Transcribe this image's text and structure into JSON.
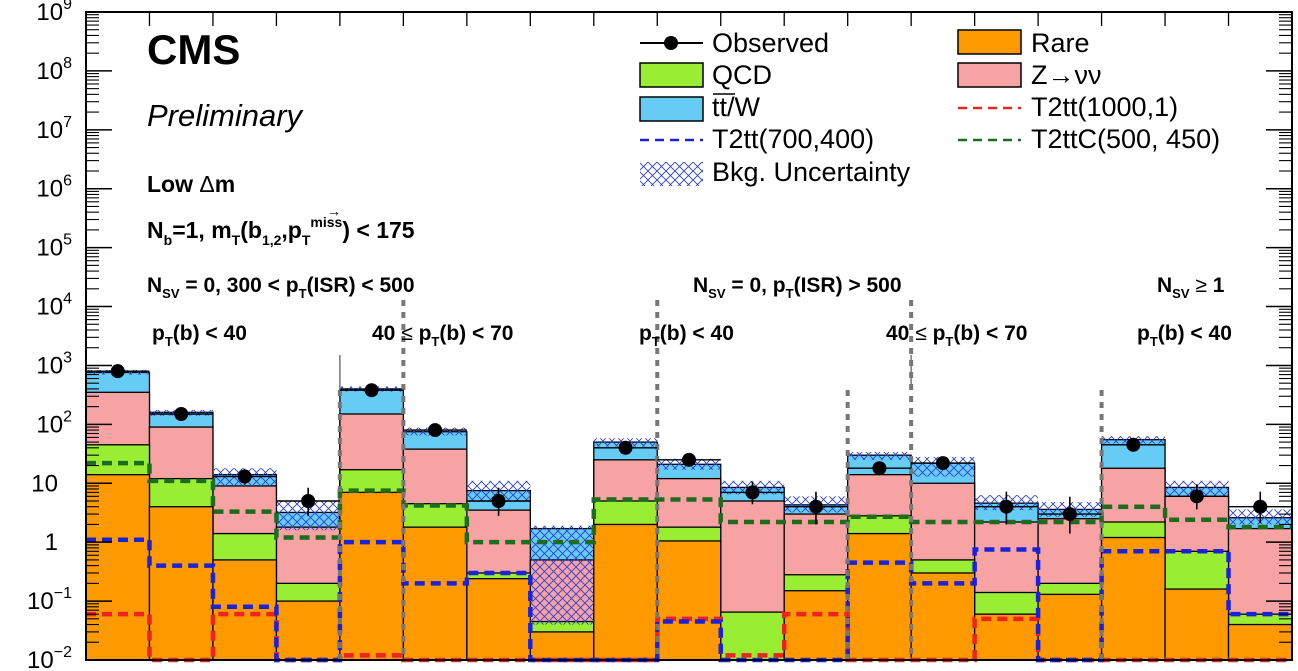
{
  "chart_data": {
    "type": "bar",
    "yscale": "log",
    "ylim": [
      0.01,
      1000000000
    ],
    "y_tick_labels": [
      "10^-2",
      "10^-1",
      "1",
      "10",
      "10^2",
      "10^3",
      "10^4",
      "10^5",
      "10^6",
      "10^7",
      "10^8",
      "10^9"
    ],
    "n_bins": 19,
    "texts": {
      "cms": "CMS",
      "preliminary": "Preliminary",
      "region": "Low  Δm",
      "selection": "N_b=1, m_T(b_1,2, p_T^miss) < 175"
    },
    "groups": [
      {
        "label": "N_SV = 0, 300 < p_T(ISR) < 500"
      },
      {
        "label": "N_SV = 0, p_T(ISR) > 500"
      },
      {
        "label": "N_SV ≥ 1"
      }
    ],
    "subgroups": [
      {
        "label": "p_T(b) < 40"
      },
      {
        "label": "40 ≤ p_T(b) < 70"
      },
      {
        "label": "p_T(b) < 40"
      },
      {
        "label": "40 ≤ p_T(b) < 70"
      },
      {
        "label": "p_T(b) < 40"
      }
    ],
    "legend": [
      {
        "label": "Observed",
        "kind": "marker"
      },
      {
        "label": "Rare",
        "kind": "fill",
        "color": "#ff9900"
      },
      {
        "label": "QCD",
        "kind": "fill",
        "color": "#99ee33"
      },
      {
        "label": "Z→νν",
        "kind": "fill",
        "color": "#f7a3a3"
      },
      {
        "label": "tt/W",
        "kind": "fill",
        "color": "#66ccf5"
      },
      {
        "label": "T2tt(1000,1)",
        "kind": "dashed",
        "color": "#ee2222"
      },
      {
        "label": "T2tt(700,400)",
        "kind": "dashed",
        "color": "#1a22dd"
      },
      {
        "label": "T2ttC(500, 450)",
        "kind": "dashed",
        "color": "#1f6b1f"
      },
      {
        "label": "Bkg. Uncertainty",
        "kind": "hatch",
        "color": "#2b3fd6"
      }
    ],
    "series": [
      {
        "name": "Rare",
        "color": "#ff9900",
        "values": [
          14,
          4,
          0.5,
          0.1,
          7,
          1.8,
          0.24,
          0.03,
          2,
          1.05,
          0.01,
          0.15,
          1.4,
          0.3,
          0.06,
          0.13,
          1.2,
          0.16,
          0.04
        ]
      },
      {
        "name": "QCD",
        "color": "#99ee33",
        "values": [
          45,
          12,
          1.4,
          0.2,
          17,
          4.5,
          0.3,
          0.045,
          5,
          1.8,
          0.065,
          0.28,
          2.8,
          0.5,
          0.14,
          0.2,
          2.2,
          0.7,
          0.06
        ]
      },
      {
        "name": "Z→νν",
        "color": "#f7a3a3",
        "values": [
          350,
          90,
          9,
          1.8,
          150,
          38,
          3.5,
          0.5,
          25,
          12,
          5,
          3,
          14,
          10,
          2.2,
          2.5,
          18,
          6,
          1.7
        ]
      },
      {
        "name": "tt/W",
        "color": "#66ccf5",
        "values": [
          760,
          160,
          14,
          3.2,
          400,
          75,
          7.5,
          1.7,
          50,
          21,
          8.5,
          4.3,
          30,
          22,
          4.6,
          3.6,
          55,
          8.5,
          2.6
        ]
      }
    ],
    "uncertainty": {
      "low": [
        700,
        140,
        9,
        1.6,
        360,
        65,
        4.8,
        0.04,
        42,
        17,
        6.5,
        3.2,
        25,
        13,
        3.5,
        2.7,
        47,
        6.2,
        2.0
      ],
      "high": [
        840,
        175,
        18,
        5.0,
        440,
        88,
        11,
        1.9,
        58,
        26,
        11,
        6.0,
        34,
        28,
        6.3,
        4.8,
        63,
        11,
        3.6
      ]
    },
    "observed": {
      "values": [
        800,
        150,
        13,
        5,
        380,
        80,
        5,
        null,
        40,
        25,
        7,
        4,
        18,
        22,
        4,
        3,
        45,
        6,
        4
      ],
      "err_low": [
        30,
        12,
        3.5,
        2.2,
        20,
        9,
        2.2,
        null,
        6,
        5,
        2.6,
        2,
        4.2,
        4.7,
        2,
        1.6,
        6.7,
        2.4,
        1.9
      ],
      "err_high": [
        30,
        12,
        4.6,
        3.4,
        20,
        10,
        3.4,
        null,
        7.4,
        6,
        3.7,
        3.2,
        5.3,
        5.7,
        3.2,
        2.9,
        7.8,
        3.6,
        3.2
      ]
    },
    "signals": [
      {
        "name": "T2tt(1000,1)",
        "color": "#ee2222",
        "values": [
          0.06,
          0.01,
          0.06,
          0.01,
          0.012,
          0.01,
          0.01,
          0.01,
          0.01,
          0.05,
          0.012,
          0.06,
          0.01,
          0.01,
          0.05,
          0.01,
          0.01,
          0.01,
          0.01
        ]
      },
      {
        "name": "T2tt(700,400)",
        "color": "#1a22dd",
        "values": [
          1.1,
          0.4,
          0.08,
          0.01,
          1.0,
          0.2,
          0.3,
          0.01,
          0.01,
          0.045,
          0.01,
          0.01,
          0.45,
          0.2,
          0.75,
          0.01,
          0.7,
          0.7,
          0.06
        ]
      },
      {
        "name": "T2ttC(500, 450)",
        "color": "#1f6b1f",
        "values": [
          22,
          11,
          3.3,
          1.2,
          7.5,
          4.2,
          1.0,
          1.0,
          5.3,
          5.3,
          2.2,
          2.2,
          2.7,
          2.2,
          2.2,
          2.2,
          4.0,
          2.4,
          1.8
        ]
      }
    ]
  }
}
